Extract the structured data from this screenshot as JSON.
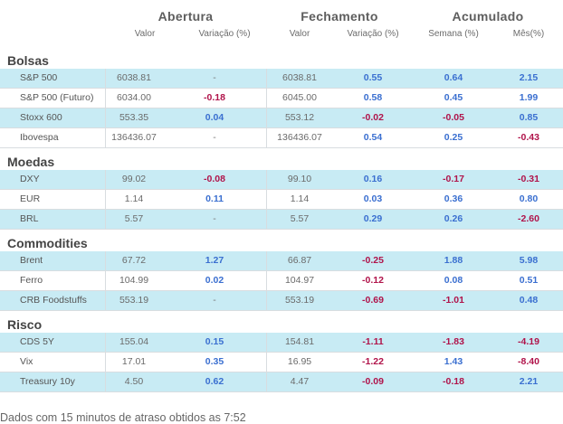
{
  "groups": {
    "abertura": "Abertura",
    "fechamento": "Fechamento",
    "acumulado": "Acumulado"
  },
  "columns": {
    "valor_a": "Valor",
    "variacao_a": "Variação (%)",
    "valor_f": "Valor",
    "variacao_f": "Variação (%)",
    "semana": "Semana (%)",
    "mes": "Mês(%)"
  },
  "sections": [
    {
      "title": "Bolsas",
      "rows": [
        {
          "name": "S&P 500",
          "open": "6038.81",
          "open_var": "-",
          "close": "6038.81",
          "close_var": "0.55",
          "week": "0.64",
          "month": "2.15"
        },
        {
          "name": "S&P 500 (Futuro)",
          "open": "6034.00",
          "open_var": "-0.18",
          "close": "6045.00",
          "close_var": "0.58",
          "week": "0.45",
          "month": "1.99"
        },
        {
          "name": "Stoxx 600",
          "open": "553.35",
          "open_var": "0.04",
          "close": "553.12",
          "close_var": "-0.02",
          "week": "-0.05",
          "month": "0.85"
        },
        {
          "name": "Ibovespa",
          "open": "136436.07",
          "open_var": "-",
          "close": "136436.07",
          "close_var": "0.54",
          "week": "0.25",
          "month": "-0.43"
        }
      ]
    },
    {
      "title": "Moedas",
      "rows": [
        {
          "name": "DXY",
          "open": "99.02",
          "open_var": "-0.08",
          "close": "99.10",
          "close_var": "0.16",
          "week": "-0.17",
          "month": "-0.31"
        },
        {
          "name": "EUR",
          "open": "1.14",
          "open_var": "0.11",
          "close": "1.14",
          "close_var": "0.03",
          "week": "0.36",
          "month": "0.80"
        },
        {
          "name": "BRL",
          "open": "5.57",
          "open_var": "-",
          "close": "5.57",
          "close_var": "0.29",
          "week": "0.26",
          "month": "-2.60"
        }
      ]
    },
    {
      "title": "Commodities",
      "rows": [
        {
          "name": "Brent",
          "open": "67.72",
          "open_var": "1.27",
          "close": "66.87",
          "close_var": "-0.25",
          "week": "1.88",
          "month": "5.98"
        },
        {
          "name": "Ferro",
          "open": "104.99",
          "open_var": "0.02",
          "close": "104.97",
          "close_var": "-0.12",
          "week": "0.08",
          "month": "0.51"
        },
        {
          "name": "CRB Foodstuffs",
          "open": "553.19",
          "open_var": "-",
          "close": "553.19",
          "close_var": "-0.69",
          "week": "-1.01",
          "month": "0.48"
        }
      ]
    },
    {
      "title": "Risco",
      "rows": [
        {
          "name": "CDS 5Y",
          "open": "155.04",
          "open_var": "0.15",
          "close": "154.81",
          "close_var": "-1.11",
          "week": "-1.83",
          "month": "-4.19"
        },
        {
          "name": "Vix",
          "open": "17.01",
          "open_var": "0.35",
          "close": "16.95",
          "close_var": "-1.22",
          "week": "1.43",
          "month": "-8.40"
        },
        {
          "name": "Treasury 10y",
          "open": "4.50",
          "open_var": "0.62",
          "close": "4.47",
          "close_var": "-0.09",
          "week": "-0.18",
          "month": "2.21"
        }
      ]
    }
  ],
  "footer": "Dados com 15 minutos de atraso obtidos as 7:52",
  "colors": {
    "positive": "#3a6fd0",
    "negative": "#b0134a",
    "row_highlight": "#c8ebf4"
  }
}
